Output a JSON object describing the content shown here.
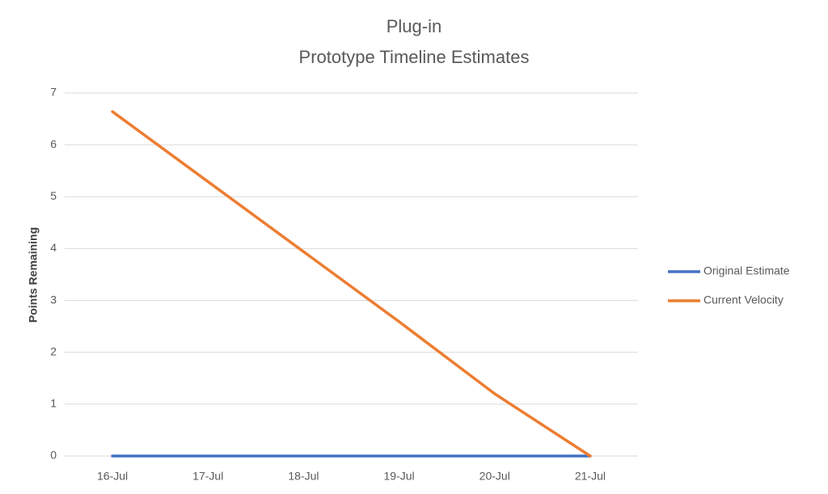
{
  "chart_data": {
    "type": "line",
    "title": "Plug-in",
    "subtitle": "Prototype Timeline Estimates",
    "y_label": "Points Remaining",
    "categories": [
      "16-Jul",
      "17-Jul",
      "18-Jul",
      "19-Jul",
      "20-Jul",
      "21-Jul"
    ],
    "series": [
      {
        "name": "Original Estimate",
        "color": "#4472c4",
        "values": [
          0,
          0,
          0,
          0,
          0,
          0
        ]
      },
      {
        "name": "Current Velocity",
        "color": "#ed7d31",
        "values": [
          6.64,
          5.29,
          3.94,
          2.59,
          1.2,
          0
        ]
      }
    ],
    "ylim": [
      0,
      7
    ],
    "yticks": [
      0,
      1,
      2,
      3,
      4,
      5,
      6,
      7
    ],
    "grid": true,
    "legend": "right"
  }
}
